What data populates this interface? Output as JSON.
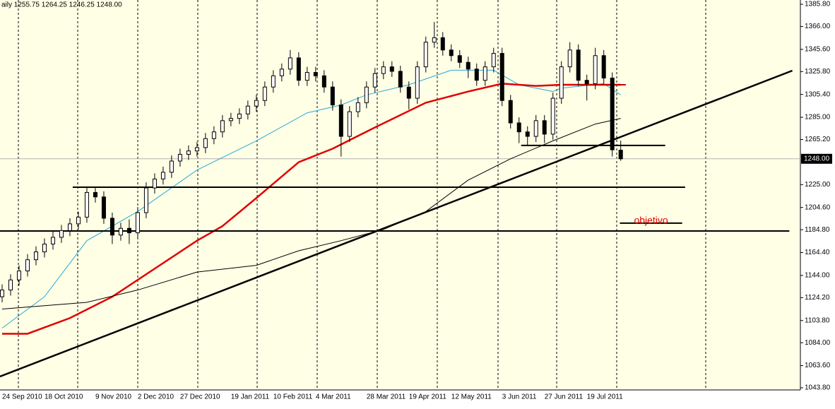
{
  "chart_data": {
    "type": "candlestick",
    "title": "aily  1255.75 1264.25 1246.25 1248.00",
    "categories": [
      "24 Sep 2010",
      null,
      null,
      null,
      null,
      "18 Oct 2010",
      null,
      null,
      null,
      null,
      null,
      "9 Nov 2010",
      null,
      null,
      null,
      null,
      "2 Dec 2010",
      null,
      null,
      null,
      null,
      "27 Dec 2010",
      null,
      null,
      null,
      null,
      null,
      "19 Jan 2011",
      null,
      null,
      null,
      null,
      "10 Feb 2011",
      null,
      null,
      null,
      null,
      "4 Mar 2011",
      null,
      null,
      null,
      null,
      null,
      "28 Mar 2011",
      null,
      null,
      null,
      null,
      "19 Apr 2011",
      null,
      null,
      null,
      null,
      "12 May 2011",
      null,
      null,
      null,
      null,
      null,
      "3 Jun 2011",
      null,
      null,
      null,
      null,
      "27 Jun 2011",
      null,
      null,
      null,
      null,
      "19 Jul 2011",
      null,
      null,
      null,
      null
    ],
    "open": [
      1125,
      1131,
      1140,
      1148,
      1158,
      1165,
      1172,
      1178,
      1184,
      1190,
      1196,
      1218,
      1214,
      1195,
      1180,
      1186,
      1182,
      1200,
      1222,
      1230,
      1236,
      1246,
      1252,
      1255,
      1258,
      1266,
      1272,
      1282,
      1284,
      1288,
      1295,
      1300,
      1312,
      1322,
      1328,
      1338,
      1318,
      1325,
      1322,
      1312,
      1296,
      1268,
      1290,
      1298,
      1312,
      1324,
      1330,
      1326,
      1312,
      1302,
      1330,
      1352,
      1356,
      1345,
      1340,
      1334,
      1328,
      1318,
      1330,
      1342,
      1300,
      1280,
      1272,
      1268,
      1282,
      1270,
      1302,
      1330,
      1345,
      1318,
      1315,
      1340,
      1320,
      1255.75
    ],
    "high": [
      1136,
      1145,
      1153,
      1163,
      1170,
      1177,
      1183,
      1189,
      1195,
      1201,
      1223,
      1223,
      1219,
      1200,
      1191,
      1194,
      1205,
      1227,
      1235,
      1241,
      1251,
      1257,
      1260,
      1263,
      1271,
      1277,
      1287,
      1289,
      1293,
      1300,
      1305,
      1317,
      1327,
      1333,
      1345,
      1343,
      1330,
      1330,
      1327,
      1317,
      1301,
      1295,
      1303,
      1317,
      1329,
      1335,
      1335,
      1331,
      1317,
      1335,
      1357,
      1370,
      1361,
      1350,
      1345,
      1339,
      1333,
      1335,
      1347,
      1347,
      1305,
      1285,
      1277,
      1287,
      1287,
      1307,
      1335,
      1352,
      1350,
      1323,
      1347,
      1345,
      1325,
      1264.25
    ],
    "low": [
      1120,
      1126,
      1135,
      1143,
      1153,
      1160,
      1167,
      1173,
      1179,
      1185,
      1191,
      1209,
      1190,
      1172,
      1175,
      1172,
      1177,
      1195,
      1217,
      1225,
      1231,
      1241,
      1247,
      1250,
      1253,
      1261,
      1267,
      1277,
      1279,
      1283,
      1290,
      1295,
      1307,
      1317,
      1323,
      1313,
      1313,
      1317,
      1307,
      1291,
      1250,
      1263,
      1285,
      1293,
      1307,
      1319,
      1321,
      1307,
      1292,
      1297,
      1325,
      1347,
      1340,
      1335,
      1329,
      1320,
      1313,
      1313,
      1325,
      1295,
      1275,
      1262,
      1260,
      1263,
      1262,
      1265,
      1297,
      1325,
      1313,
      1300,
      1310,
      1315,
      1250,
      1246.25
    ],
    "close": [
      1131,
      1140,
      1148,
      1158,
      1165,
      1172,
      1178,
      1184,
      1190,
      1196,
      1218,
      1214,
      1195,
      1180,
      1186,
      1182,
      1200,
      1222,
      1230,
      1236,
      1246,
      1252,
      1255,
      1258,
      1266,
      1272,
      1282,
      1284,
      1288,
      1295,
      1300,
      1312,
      1322,
      1328,
      1338,
      1318,
      1325,
      1322,
      1312,
      1296,
      1268,
      1290,
      1298,
      1312,
      1324,
      1330,
      1326,
      1312,
      1302,
      1330,
      1352,
      1356,
      1345,
      1340,
      1334,
      1328,
      1318,
      1330,
      1342,
      1300,
      1280,
      1272,
      1268,
      1282,
      1270,
      1302,
      1330,
      1345,
      1318,
      1315,
      1340,
      1320,
      1256,
      1248
    ],
    "lines": [
      {
        "color": "#2aa7d8",
        "x": [
          0,
          5,
          10,
          16,
          23,
          30,
          36,
          40,
          43,
          48,
          53,
          58,
          61,
          65,
          66,
          71,
          73
        ],
        "values": [
          1097,
          1125,
          1175,
          1201,
          1238,
          1264,
          1289,
          1296,
          1305,
          1314,
          1327,
          1327,
          1314,
          1308,
          1311,
          1315,
          1305
        ]
      },
      {
        "color": "#e00000",
        "x": [
          0,
          3,
          8,
          13,
          18,
          23,
          26,
          30,
          35,
          39,
          44,
          50,
          55,
          59,
          63,
          66,
          73
        ],
        "values": [
          1092,
          1092,
          1106,
          1125,
          1150,
          1175,
          1188,
          1213,
          1245,
          1257,
          1276,
          1298,
          1308,
          1315,
          1313,
          1314,
          1314
        ]
      },
      {
        "color": "#000000",
        "x": [
          0,
          10,
          16,
          23,
          30,
          35,
          40,
          45,
          50,
          55,
          60,
          65,
          70,
          73
        ],
        "values": [
          1114,
          1120,
          1131,
          1147,
          1153,
          1166,
          1175,
          1185,
          1201,
          1229,
          1248,
          1264,
          1279,
          1284
        ]
      }
    ],
    "trendline": {
      "color": "#000000",
      "x": [
        -0.25,
        93.25
      ],
      "values": [
        1053.9,
        1326.6
      ]
    },
    "levels": [
      {
        "value": 1222.7,
        "x": [
          8.33,
          80.6
        ],
        "color": "#000000"
      },
      {
        "value": 1183.6,
        "x": [
          -0.25,
          92.9
        ],
        "color": "#000000"
      },
      {
        "value": 1259.9,
        "x": [
          61.25,
          78.25
        ],
        "color": "#000000"
      },
      {
        "value": 1314,
        "x": [
          67.9,
          73.6
        ],
        "color": "#cc0000"
      },
      {
        "value": 1190.6,
        "x": [
          72.9,
          80.25
        ],
        "color": "#000000",
        "label": "objetivo"
      }
    ],
    "last_price": {
      "value": 1248,
      "label": "1248.00"
    },
    "xlim": [
      -0.25,
      94.2
    ],
    "ylim": [
      1041.9,
      1389.6
    ],
    "yticks": [
      {
        "value": 1385.8,
        "label": "1385.80"
      },
      {
        "value": 1366,
        "label": "1366.00"
      },
      {
        "value": 1345.6,
        "label": "1345.60"
      },
      {
        "value": 1325.8,
        "label": "1325.80"
      },
      {
        "value": 1305.4,
        "label": "1305.40"
      },
      {
        "value": 1285,
        "label": "1285.00"
      },
      {
        "value": 1265.2,
        "label": "1265.20"
      },
      {
        "value": 1225,
        "label": "1225.00"
      },
      {
        "value": 1204.6,
        "label": "1204.60"
      },
      {
        "value": 1184.8,
        "label": "1184.80"
      },
      {
        "value": 1164.4,
        "label": "1164.40"
      },
      {
        "value": 1144,
        "label": "1144.00"
      },
      {
        "value": 1124.2,
        "label": "1124.20"
      },
      {
        "value": 1103.8,
        "label": "1103.80"
      },
      {
        "value": 1084,
        "label": "1084.00"
      },
      {
        "value": 1063.6,
        "label": "1063.60"
      },
      {
        "value": 1043.8,
        "label": "1043.80"
      }
    ]
  }
}
